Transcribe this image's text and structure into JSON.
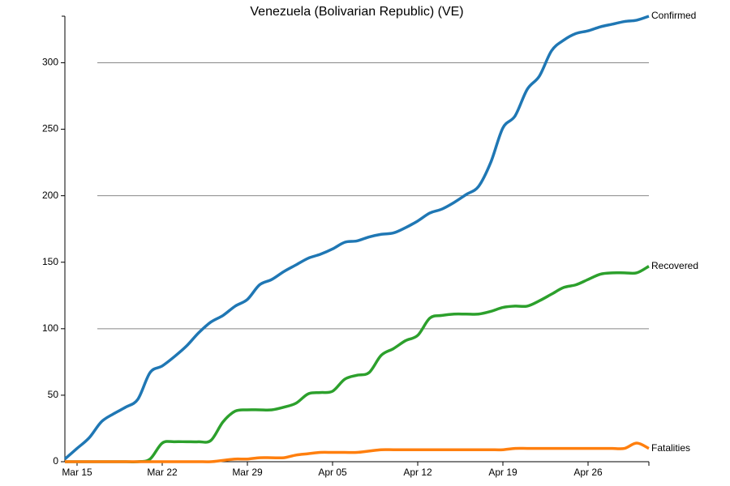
{
  "chart_data": {
    "type": "line",
    "title": "Venezuela (Bolivarian Republic) (VE)",
    "categories": [
      null,
      "Mar 15",
      null,
      null,
      null,
      null,
      null,
      null,
      "Mar 22",
      null,
      null,
      null,
      null,
      null,
      null,
      "Mar 29",
      null,
      null,
      null,
      null,
      null,
      null,
      "Apr 05",
      null,
      null,
      null,
      null,
      null,
      null,
      "Apr 12",
      null,
      null,
      null,
      null,
      null,
      null,
      "Apr 19",
      null,
      null,
      null,
      null,
      null,
      null,
      "Apr 26",
      null,
      null,
      null,
      null,
      null
    ],
    "series": [
      {
        "name": "Confirmed",
        "color": "#1f77b4",
        "values": [
          2,
          10,
          18,
          30,
          36,
          41,
          47,
          67,
          72,
          79,
          87,
          97,
          105,
          110,
          117,
          122,
          133,
          137,
          143,
          148,
          153,
          156,
          160,
          165,
          166,
          169,
          171,
          172,
          176,
          181,
          187,
          190,
          195,
          201,
          207,
          225,
          251,
          260,
          280,
          290,
          309,
          317,
          322,
          324,
          327,
          329,
          331,
          332,
          335
        ]
      },
      {
        "name": "Recovered",
        "color": "#2ca02c",
        "values": [
          0,
          0,
          0,
          0,
          0,
          0,
          0,
          2,
          14,
          15,
          15,
          15,
          16,
          30,
          38,
          39,
          39,
          39,
          41,
          44,
          51,
          52,
          53,
          62,
          65,
          67,
          80,
          85,
          91,
          95,
          108,
          110,
          111,
          111,
          111,
          113,
          116,
          117,
          117,
          121,
          126,
          131,
          133,
          137,
          141,
          142,
          142,
          142,
          147
        ]
      },
      {
        "name": "Fatalities",
        "color": "#ff7f0e",
        "values": [
          0,
          0,
          0,
          0,
          0,
          0,
          0,
          0,
          0,
          0,
          0,
          0,
          0,
          1,
          2,
          2,
          3,
          3,
          3,
          5,
          6,
          7,
          7,
          7,
          7,
          8,
          9,
          9,
          9,
          9,
          9,
          9,
          9,
          9,
          9,
          9,
          9,
          10,
          10,
          10,
          10,
          10,
          10,
          10,
          10,
          10,
          10,
          14,
          10
        ]
      }
    ],
    "ylim": [
      0,
      335
    ],
    "yticks": [
      0,
      50,
      100,
      150,
      200,
      250,
      300
    ],
    "grid_lines": [
      100,
      200,
      300
    ]
  }
}
